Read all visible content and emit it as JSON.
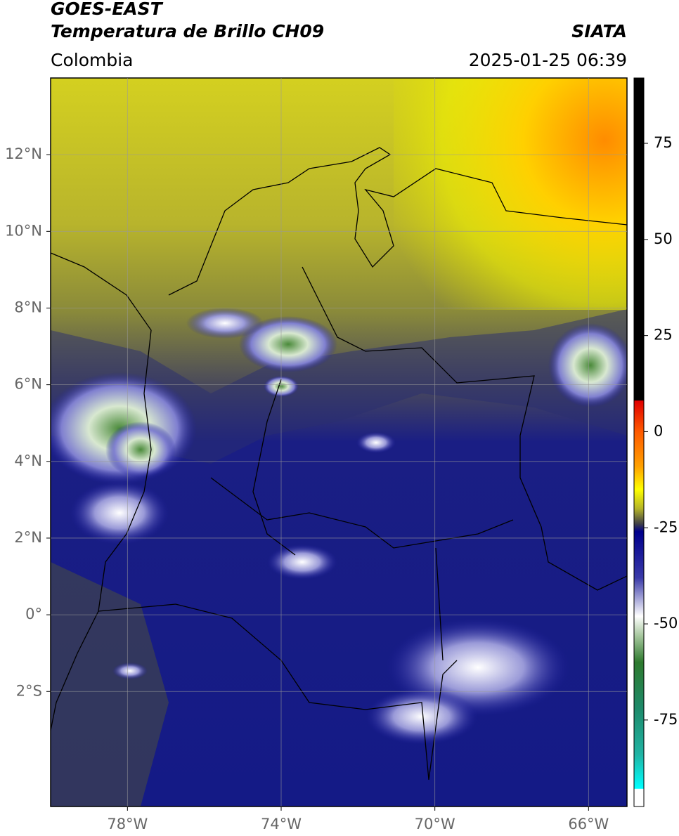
{
  "header": {
    "title": "GOES-EAST",
    "subtitle": "Temperatura de Brillo CH09",
    "source": "SIATA",
    "region": "Colombia",
    "timestamp": "2025-01-25 06:39"
  },
  "map": {
    "xlim": [
      -80,
      -65
    ],
    "ylim": [
      -5,
      14
    ],
    "grid": true,
    "xticks": [
      {
        "value": -78,
        "label": "78°W"
      },
      {
        "value": -74,
        "label": "74°W"
      },
      {
        "value": -70,
        "label": "70°W"
      },
      {
        "value": -66,
        "label": "66°W"
      }
    ],
    "yticks": [
      {
        "value": 12,
        "label": "12°N"
      },
      {
        "value": 10,
        "label": "10°N"
      },
      {
        "value": 8,
        "label": "8°N"
      },
      {
        "value": 6,
        "label": "6°N"
      },
      {
        "value": 4,
        "label": "4°N"
      },
      {
        "value": 2,
        "label": "2°N"
      },
      {
        "value": 0,
        "label": "0°"
      },
      {
        "value": -2,
        "label": "2°S"
      }
    ]
  },
  "colorbar": {
    "clim": [
      -97.5,
      92
    ],
    "ticks": [
      75,
      50,
      25,
      0,
      -25,
      -50,
      -75
    ],
    "stops": [
      {
        "value": 92,
        "color": "#000000"
      },
      {
        "value": 8.2,
        "color": "#000000"
      },
      {
        "value": 8,
        "color": "#e00000"
      },
      {
        "value": 0,
        "color": "#ff5a00"
      },
      {
        "value": -9,
        "color": "#ffa000"
      },
      {
        "value": -15,
        "color": "#ffff00"
      },
      {
        "value": -20,
        "color": "#b4b428"
      },
      {
        "value": -24,
        "color": "#404048"
      },
      {
        "value": -26,
        "color": "#00008c"
      },
      {
        "value": -38,
        "color": "#3a3aa8"
      },
      {
        "value": -48,
        "color": "#ffffff"
      },
      {
        "value": -53,
        "color": "#a8c8a0"
      },
      {
        "value": -60,
        "color": "#2e7a2e"
      },
      {
        "value": -72,
        "color": "#1e8a6a"
      },
      {
        "value": -84,
        "color": "#20b4a4"
      },
      {
        "value": -92.8,
        "color": "#00ffff"
      },
      {
        "value": -93,
        "color": "#ffffff"
      },
      {
        "value": -97.5,
        "color": "#ffffff"
      }
    ]
  }
}
